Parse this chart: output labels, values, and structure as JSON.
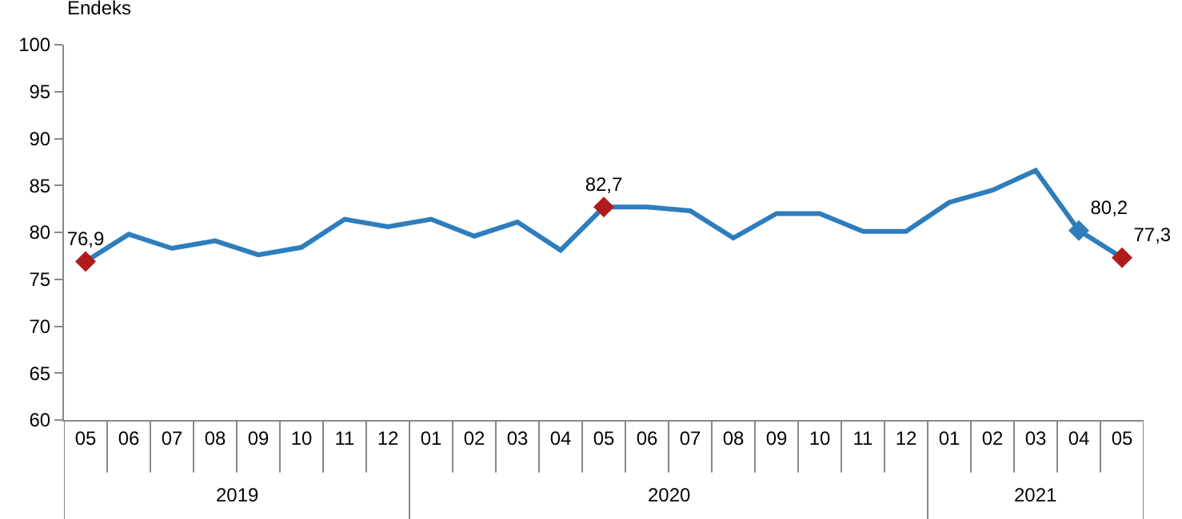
{
  "chart_data": {
    "type": "line",
    "ylabel": "Endeks",
    "categories": [
      "05",
      "06",
      "07",
      "08",
      "09",
      "10",
      "11",
      "12",
      "01",
      "02",
      "03",
      "04",
      "05",
      "06",
      "07",
      "08",
      "09",
      "10",
      "11",
      "12",
      "01",
      "02",
      "03",
      "04",
      "05"
    ],
    "annotations": [
      "2019",
      "2020",
      "2021"
    ],
    "series": [
      {
        "color": "#2e7dbd",
        "values": [
          76.9,
          79.8,
          78.3,
          79.1,
          77.6,
          78.4,
          81.4,
          80.6,
          81.4,
          79.6,
          81.1,
          78.1,
          82.7,
          82.7,
          82.3,
          79.4,
          82.0,
          82.0,
          80.1,
          80.1,
          83.2,
          84.5,
          86.6,
          80.2,
          77.3
        ],
        "colors": [
          "#b01c1c",
          null,
          null,
          null,
          null,
          null,
          null,
          null,
          null,
          null,
          null,
          null,
          "#b01c1c",
          null,
          null,
          null,
          null,
          null,
          null,
          null,
          null,
          null,
          null,
          "#2e7dbd",
          "#b01c1c"
        ],
        "value_labels": [
          "76,9",
          null,
          null,
          null,
          null,
          null,
          null,
          null,
          null,
          null,
          null,
          null,
          "82,7",
          null,
          null,
          null,
          null,
          null,
          null,
          null,
          null,
          null,
          null,
          "80,2",
          "77,3"
        ]
      }
    ],
    "ylim": [
      60,
      100
    ],
    "yticks": [
      60,
      65,
      70,
      75,
      80,
      85,
      90,
      95,
      100
    ],
    "legend": false,
    "line_style": "solid"
  }
}
